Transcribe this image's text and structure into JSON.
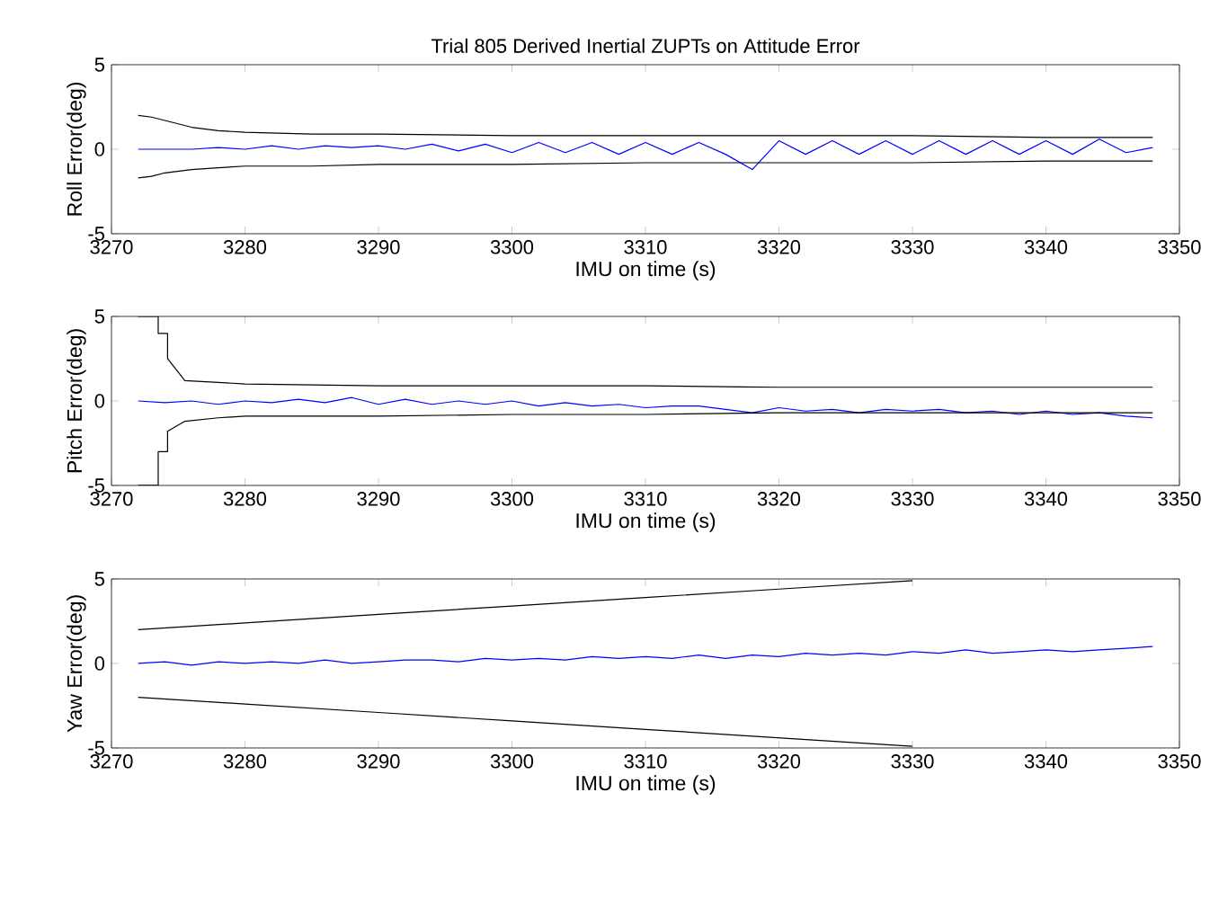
{
  "chart_data": [
    {
      "type": "line",
      "title": "Trial 805 Derived Inertial ZUPTs on Attitude Error",
      "xlabel": "IMU on time (s)",
      "ylabel": "Roll Error(deg)",
      "xlim": [
        3270,
        3350
      ],
      "xticks": [
        3270,
        3280,
        3290,
        3300,
        3310,
        3320,
        3330,
        3340,
        3350
      ],
      "ylim": [
        -5,
        5
      ],
      "yticks": [
        -5,
        0,
        5
      ],
      "grid": false,
      "series": [
        {
          "color": "#000000",
          "x": [
            3272,
            3273,
            3274,
            3276,
            3278,
            3280,
            3285,
            3290,
            3300,
            3310,
            3320,
            3330,
            3340,
            3348
          ],
          "values": [
            2,
            1.9,
            1.7,
            1.3,
            1.1,
            1,
            0.9,
            0.9,
            0.8,
            0.8,
            0.8,
            0.8,
            0.7,
            0.7
          ]
        },
        {
          "color": "#0000ff",
          "x": [
            3272,
            3274,
            3276,
            3278,
            3280,
            3282,
            3284,
            3286,
            3288,
            3290,
            3292,
            3294,
            3296,
            3298,
            3300,
            3302,
            3304,
            3306,
            3308,
            3310,
            3312,
            3314,
            3316,
            3318,
            3320,
            3322,
            3324,
            3326,
            3328,
            3330,
            3332,
            3334,
            3336,
            3338,
            3340,
            3342,
            3344,
            3346,
            3348
          ],
          "values": [
            0,
            0,
            0,
            0.1,
            0,
            0.2,
            0,
            0.2,
            0.1,
            0.2,
            0,
            0.3,
            -0.1,
            0.3,
            -0.2,
            0.4,
            -0.2,
            0.4,
            -0.3,
            0.4,
            -0.3,
            0.4,
            -0.3,
            -1.2,
            0.5,
            -0.3,
            0.5,
            -0.3,
            0.5,
            -0.3,
            0.5,
            -0.3,
            0.5,
            -0.3,
            0.5,
            -0.3,
            0.6,
            -0.2,
            0.1
          ]
        },
        {
          "color": "#000000",
          "x": [
            3272,
            3273,
            3274,
            3276,
            3278,
            3280,
            3285,
            3290,
            3300,
            3310,
            3320,
            3330,
            3340,
            3348
          ],
          "values": [
            -1.7,
            -1.6,
            -1.4,
            -1.2,
            -1.1,
            -1,
            -1,
            -0.9,
            -0.9,
            -0.8,
            -0.8,
            -0.8,
            -0.7,
            -0.7
          ]
        }
      ]
    },
    {
      "type": "line",
      "xlabel": "IMU on time (s)",
      "ylabel": "Pitch Error(deg)",
      "xlim": [
        3270,
        3350
      ],
      "xticks": [
        3270,
        3280,
        3290,
        3300,
        3310,
        3320,
        3330,
        3340,
        3350
      ],
      "ylim": [
        -5,
        5
      ],
      "yticks": [
        -5,
        0,
        5
      ],
      "grid": false,
      "series": [
        {
          "color": "#000000",
          "x": [
            3272,
            3273.5,
            3273.5,
            3274.2,
            3274.2,
            3275.5,
            3278,
            3280,
            3290,
            3300,
            3310,
            3320,
            3330,
            3340,
            3348
          ],
          "values": [
            5,
            5,
            4,
            4,
            2.5,
            1.2,
            1.1,
            1,
            0.9,
            0.9,
            0.9,
            0.8,
            0.8,
            0.8,
            0.8
          ]
        },
        {
          "color": "#0000ff",
          "x": [
            3272,
            3274,
            3276,
            3278,
            3280,
            3282,
            3284,
            3286,
            3288,
            3290,
            3292,
            3294,
            3296,
            3298,
            3300,
            3302,
            3304,
            3306,
            3308,
            3310,
            3312,
            3314,
            3316,
            3318,
            3320,
            3322,
            3324,
            3326,
            3328,
            3330,
            3332,
            3334,
            3336,
            3338,
            3340,
            3342,
            3344,
            3346,
            3348
          ],
          "values": [
            0,
            -0.1,
            0,
            -0.2,
            0,
            -0.1,
            0.1,
            -0.1,
            0.2,
            -0.2,
            0.1,
            -0.2,
            0,
            -0.2,
            0,
            -0.3,
            -0.1,
            -0.3,
            -0.2,
            -0.4,
            -0.3,
            -0.3,
            -0.5,
            -0.7,
            -0.4,
            -0.6,
            -0.5,
            -0.7,
            -0.5,
            -0.6,
            -0.5,
            -0.7,
            -0.6,
            -0.8,
            -0.6,
            -0.8,
            -0.7,
            -0.9,
            -1
          ]
        },
        {
          "color": "#000000",
          "x": [
            3272,
            3273.5,
            3273.5,
            3274.2,
            3274.2,
            3275.5,
            3278,
            3280,
            3290,
            3300,
            3310,
            3320,
            3330,
            3340,
            3348
          ],
          "values": [
            -5,
            -5,
            -3,
            -3,
            -1.8,
            -1.2,
            -1,
            -0.9,
            -0.9,
            -0.8,
            -0.8,
            -0.7,
            -0.7,
            -0.7,
            -0.7
          ]
        }
      ]
    },
    {
      "type": "line",
      "xlabel": "IMU on time (s)",
      "ylabel": "Yaw Error(deg)",
      "xlim": [
        3270,
        3350
      ],
      "xticks": [
        3270,
        3280,
        3290,
        3300,
        3310,
        3320,
        3330,
        3340,
        3350
      ],
      "ylim": [
        -5,
        5
      ],
      "yticks": [
        -5,
        0,
        5
      ],
      "grid": false,
      "series": [
        {
          "color": "#000000",
          "x": [
            3272,
            3280,
            3290,
            3300,
            3310,
            3320,
            3330
          ],
          "values": [
            2,
            2.4,
            2.9,
            3.4,
            3.9,
            4.4,
            4.9
          ]
        },
        {
          "color": "#0000ff",
          "x": [
            3272,
            3274,
            3276,
            3278,
            3280,
            3282,
            3284,
            3286,
            3288,
            3290,
            3292,
            3294,
            3296,
            3298,
            3300,
            3302,
            3304,
            3306,
            3308,
            3310,
            3312,
            3314,
            3316,
            3318,
            3320,
            3322,
            3324,
            3326,
            3328,
            3330,
            3332,
            3334,
            3336,
            3338,
            3340,
            3342,
            3344,
            3346,
            3348
          ],
          "values": [
            0,
            0.1,
            -0.1,
            0.1,
            0,
            0.1,
            0,
            0.2,
            0,
            0.1,
            0.2,
            0.2,
            0.1,
            0.3,
            0.2,
            0.3,
            0.2,
            0.4,
            0.3,
            0.4,
            0.3,
            0.5,
            0.3,
            0.5,
            0.4,
            0.6,
            0.5,
            0.6,
            0.5,
            0.7,
            0.6,
            0.8,
            0.6,
            0.7,
            0.8,
            0.7,
            0.8,
            0.9,
            1
          ]
        },
        {
          "color": "#000000",
          "x": [
            3272,
            3280,
            3290,
            3300,
            3310,
            3320,
            3330
          ],
          "values": [
            -2,
            -2.4,
            -2.9,
            -3.4,
            -3.9,
            -4.4,
            -4.9
          ]
        }
      ]
    }
  ]
}
